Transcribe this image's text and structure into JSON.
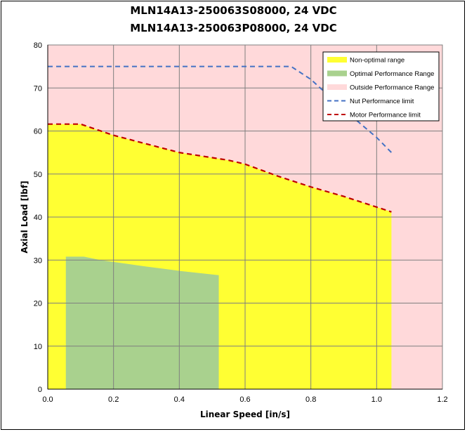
{
  "chart_data": {
    "type": "area",
    "title_lines": [
      "MLN14A13-250063S08000, 24 VDC",
      "MLN14A13-250063P08000, 24 VDC"
    ],
    "xlabel": "Linear Speed [in/s]",
    "ylabel": "Axial Load [lbf]",
    "xlim": [
      0,
      1.2
    ],
    "ylim": [
      0,
      80
    ],
    "xticks": [
      "0.0",
      "0.2",
      "0.4",
      "0.6",
      "0.8",
      "1.0",
      "1.2"
    ],
    "yticks": [
      "0",
      "10",
      "20",
      "30",
      "40",
      "50",
      "60",
      "70",
      "80"
    ],
    "grid": true,
    "legend_position": "top-right",
    "colors": {
      "outside": "#ffd9da",
      "non_optimal": "#ffff33",
      "optimal": "#a9d18e",
      "nut_limit": "#4472c4",
      "motor_limit": "#c00000",
      "grid": "#7f7f7f"
    },
    "series": [
      {
        "name": "Non-optimal range",
        "kind": "area",
        "x": [
          0.0,
          0.1,
          0.2,
          0.4,
          0.55,
          0.6,
          0.7,
          0.8,
          0.9,
          1.045
        ],
        "y": [
          61.6,
          61.6,
          59.0,
          55.0,
          53.2,
          52.3,
          49.5,
          47.0,
          44.8,
          41.2
        ]
      },
      {
        "name": "Optimal Performance Range",
        "kind": "area",
        "x": [
          0.055,
          0.11,
          0.16,
          0.3,
          0.4,
          0.52
        ],
        "y": [
          30.8,
          30.8,
          30.0,
          28.5,
          27.5,
          26.5
        ]
      },
      {
        "name": "Outside Performance Range",
        "kind": "background"
      },
      {
        "name": "Nut Performance limit",
        "kind": "dashed-line",
        "x": [
          0.0,
          0.74,
          0.8,
          0.9,
          1.0,
          1.045
        ],
        "y": [
          75.0,
          75.0,
          72.0,
          65.0,
          58.5,
          55.0
        ]
      },
      {
        "name": "Motor Performance limit",
        "kind": "dashed-line",
        "x": [
          0.0,
          0.1,
          0.2,
          0.4,
          0.55,
          0.6,
          0.7,
          0.8,
          0.9,
          1.045
        ],
        "y": [
          61.6,
          61.6,
          59.0,
          55.0,
          53.2,
          52.3,
          49.5,
          47.0,
          44.8,
          41.2
        ]
      }
    ]
  }
}
